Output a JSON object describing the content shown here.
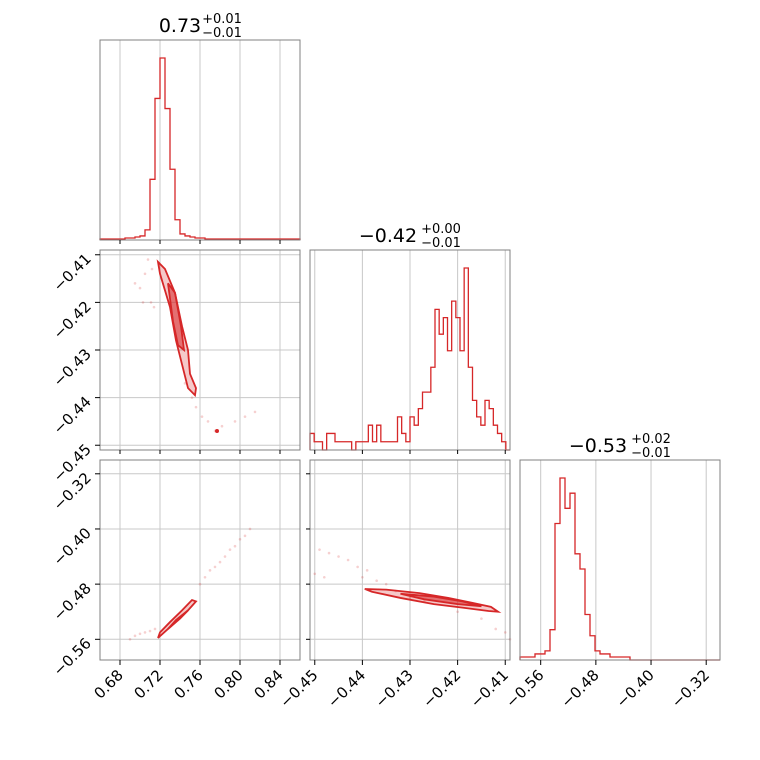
{
  "colors": {
    "series": "#d62728",
    "grid": "#c8c8c8",
    "frame": "#808080"
  },
  "titles": [
    {
      "value": "0.73",
      "plus": "+0.01",
      "minus": "−0.01"
    },
    {
      "value": "−0.42",
      "plus": "+0.00",
      "minus": "−0.01"
    },
    {
      "value": "−0.53",
      "plus": "+0.02",
      "minus": "−0.01"
    }
  ],
  "chart_data": {
    "type": "corner",
    "parameters": [
      {
        "range": [
          0.66,
          0.86
        ],
        "ticks": [
          0.68,
          0.72,
          0.76,
          0.8,
          0.84
        ],
        "tick_labels": [
          "0.68",
          "0.72",
          "0.76",
          "0.80",
          "0.84"
        ]
      },
      {
        "range": [
          -0.451,
          -0.409
        ],
        "ticks": [
          -0.45,
          -0.44,
          -0.43,
          -0.42,
          -0.41
        ],
        "tick_labels": [
          "−0.45",
          "−0.44",
          "−0.43",
          "−0.42",
          "−0.41"
        ]
      },
      {
        "range": [
          -0.59,
          -0.3
        ],
        "ticks": [
          -0.56,
          -0.48,
          -0.4,
          -0.32
        ],
        "tick_labels": [
          "−0.56",
          "−0.48",
          "−0.40",
          "−0.32"
        ]
      }
    ],
    "histograms": [
      {
        "edges_range": [
          0.66,
          0.86
        ],
        "counts": [
          1,
          1,
          1,
          1,
          1,
          2,
          2,
          3,
          4,
          10,
          60,
          140,
          180,
          130,
          70,
          20,
          6,
          4,
          3,
          2,
          2,
          1,
          1,
          1,
          1,
          1,
          1,
          1,
          1,
          1,
          1,
          1,
          1,
          1,
          1,
          1,
          1,
          1,
          1,
          1
        ]
      },
      {
        "edges_range": [
          -0.451,
          -0.409
        ],
        "counts": [
          2,
          1,
          1,
          0,
          2,
          2,
          1,
          1,
          1,
          1,
          0,
          1,
          1,
          1,
          3,
          1,
          3,
          1,
          1,
          1,
          1,
          4,
          2,
          1,
          4,
          3,
          5,
          7,
          7,
          10,
          17,
          14,
          16,
          12,
          18,
          16,
          12,
          22,
          10,
          6,
          4,
          3,
          6,
          5,
          3,
          2,
          1,
          0
        ]
      },
      {
        "edges_range": [
          -0.59,
          -0.3
        ],
        "counts": [
          1,
          1,
          1,
          2,
          2,
          3,
          10,
          45,
          60,
          50,
          55,
          35,
          30,
          15,
          8,
          3,
          2,
          2,
          1,
          1,
          1,
          1,
          0,
          0,
          0,
          0,
          0,
          0,
          0,
          0,
          0,
          0,
          0,
          0,
          0,
          0,
          0,
          0,
          0,
          0
        ]
      }
    ],
    "scatter": {
      "p1_vs_p0": [
        [
          0.705,
          -0.414
        ],
        [
          0.708,
          -0.411
        ],
        [
          0.712,
          -0.413
        ],
        [
          0.7,
          -0.417
        ],
        [
          0.703,
          -0.42
        ],
        [
          0.695,
          -0.416
        ],
        [
          0.711,
          -0.42
        ],
        [
          0.714,
          -0.421
        ],
        [
          0.745,
          -0.437
        ],
        [
          0.752,
          -0.44
        ],
        [
          0.756,
          -0.442
        ],
        [
          0.762,
          -0.444
        ],
        [
          0.768,
          -0.445
        ],
        [
          0.775,
          -0.447
        ],
        [
          0.782,
          -0.446
        ],
        [
          0.795,
          -0.445
        ],
        [
          0.805,
          -0.444
        ],
        [
          0.815,
          -0.443
        ]
      ],
      "p2_vs_p0": [
        [
          0.69,
          -0.56
        ],
        [
          0.695,
          -0.555
        ],
        [
          0.7,
          -0.552
        ],
        [
          0.705,
          -0.55
        ],
        [
          0.71,
          -0.548
        ],
        [
          0.715,
          -0.545
        ],
        [
          0.76,
          -0.48
        ],
        [
          0.765,
          -0.47
        ],
        [
          0.77,
          -0.46
        ],
        [
          0.775,
          -0.455
        ],
        [
          0.78,
          -0.448
        ],
        [
          0.785,
          -0.44
        ],
        [
          0.79,
          -0.43
        ],
        [
          0.795,
          -0.425
        ],
        [
          0.8,
          -0.415
        ],
        [
          0.805,
          -0.41
        ],
        [
          0.81,
          -0.4
        ]
      ],
      "p2_vs_p1": [
        [
          -0.449,
          -0.43
        ],
        [
          -0.447,
          -0.435
        ],
        [
          -0.445,
          -0.44
        ],
        [
          -0.443,
          -0.445
        ],
        [
          -0.441,
          -0.455
        ],
        [
          -0.439,
          -0.46
        ],
        [
          -0.44,
          -0.47
        ],
        [
          -0.448,
          -0.47
        ],
        [
          -0.45,
          -0.465
        ],
        [
          -0.437,
          -0.475
        ],
        [
          -0.435,
          -0.48
        ],
        [
          -0.433,
          -0.49
        ],
        [
          -0.43,
          -0.5
        ],
        [
          -0.427,
          -0.505
        ],
        [
          -0.42,
          -0.52
        ],
        [
          -0.415,
          -0.53
        ],
        [
          -0.412,
          -0.545
        ],
        [
          -0.41,
          -0.55
        ],
        [
          -0.409,
          -0.56
        ]
      ]
    },
    "contours": {
      "p1_vs_p0": [
        [
          [
            0.718,
            -0.4115
          ],
          [
            0.725,
            -0.413
          ],
          [
            0.735,
            -0.418
          ],
          [
            0.742,
            -0.425
          ],
          [
            0.748,
            -0.43
          ],
          [
            0.75,
            -0.435
          ],
          [
            0.756,
            -0.438
          ],
          [
            0.755,
            -0.4395
          ],
          [
            0.748,
            -0.438
          ],
          [
            0.742,
            -0.433
          ],
          [
            0.736,
            -0.428
          ],
          [
            0.73,
            -0.421
          ],
          [
            0.72,
            -0.414
          ],
          [
            0.718,
            -0.4115
          ]
        ],
        [
          [
            0.728,
            -0.416
          ],
          [
            0.735,
            -0.418
          ],
          [
            0.741,
            -0.425
          ],
          [
            0.744,
            -0.43
          ],
          [
            0.738,
            -0.429
          ],
          [
            0.733,
            -0.424
          ],
          [
            0.728,
            -0.416
          ]
        ]
      ],
      "p2_vs_p0": [
        [
          [
            0.718,
            -0.558
          ],
          [
            0.728,
            -0.545
          ],
          [
            0.738,
            -0.532
          ],
          [
            0.748,
            -0.518
          ],
          [
            0.756,
            -0.505
          ],
          [
            0.752,
            -0.503
          ],
          [
            0.742,
            -0.518
          ],
          [
            0.73,
            -0.535
          ],
          [
            0.72,
            -0.55
          ],
          [
            0.718,
            -0.558
          ]
        ],
        [
          [
            0.728,
            -0.545
          ],
          [
            0.74,
            -0.53
          ],
          [
            0.748,
            -0.518
          ],
          [
            0.736,
            -0.532
          ],
          [
            0.728,
            -0.545
          ]
        ]
      ],
      "p2_vs_p1": [
        [
          [
            -0.4395,
            -0.487
          ],
          [
            -0.435,
            -0.488
          ],
          [
            -0.428,
            -0.493
          ],
          [
            -0.422,
            -0.5
          ],
          [
            -0.417,
            -0.507
          ],
          [
            -0.413,
            -0.513
          ],
          [
            -0.4115,
            -0.52
          ],
          [
            -0.4135,
            -0.519
          ],
          [
            -0.419,
            -0.514
          ],
          [
            -0.425,
            -0.509
          ],
          [
            -0.432,
            -0.5
          ],
          [
            -0.438,
            -0.491
          ],
          [
            -0.4395,
            -0.487
          ]
        ],
        [
          [
            -0.432,
            -0.494
          ],
          [
            -0.425,
            -0.498
          ],
          [
            -0.419,
            -0.505
          ],
          [
            -0.415,
            -0.512
          ],
          [
            -0.42,
            -0.509
          ],
          [
            -0.427,
            -0.502
          ],
          [
            -0.432,
            -0.494
          ]
        ]
      ]
    },
    "markers": {
      "p1_vs_p0": [
        [
          0.777,
          -0.447
        ]
      ]
    },
    "grid": true
  }
}
